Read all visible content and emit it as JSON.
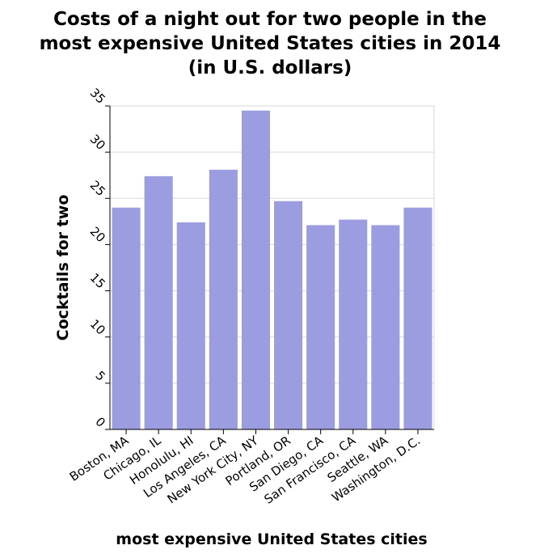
{
  "chart_data": {
    "type": "bar",
    "title_lines": [
      "Costs of a night out for two people in the",
      "most expensive United States cities in 2014",
      "(in U.S. dollars)"
    ],
    "xlabel": "most expensive United States cities",
    "ylabel": "Cocktails for two",
    "categories": [
      "Boston, MA",
      "Chicago, IL",
      "Honolulu, HI",
      "Los Angeles, CA",
      "New York City, NY",
      "Portland, OR",
      "San Diego, CA",
      "San Francisco, CA",
      "Seattle, WA",
      "Washington, D.C."
    ],
    "values": [
      24,
      27.4,
      22.4,
      28.1,
      34.5,
      24.7,
      22.1,
      22.7,
      22.1,
      24
    ],
    "ylim": [
      0,
      35
    ],
    "yticks": [
      0,
      5,
      10,
      15,
      20,
      25,
      30,
      35
    ],
    "bar_color": "#9b9de0",
    "grid": true
  }
}
